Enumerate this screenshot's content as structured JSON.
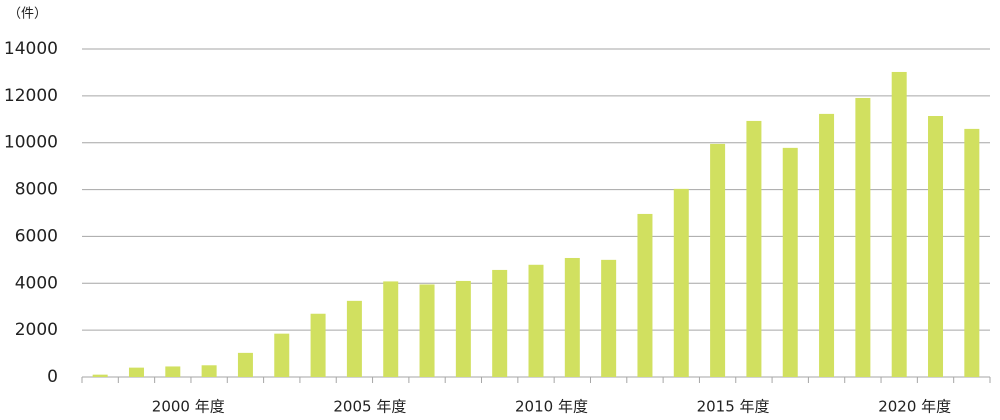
{
  "chart_data": {
    "type": "bar",
    "unit_label": "（件）",
    "categories": [
      null,
      null,
      "2000 年度",
      null,
      null,
      null,
      null,
      "2005 年度",
      null,
      null,
      null,
      null,
      "2010 年度",
      null,
      null,
      null,
      null,
      "2015 年度",
      null,
      null,
      null,
      null,
      "2020 年度",
      null,
      null
    ],
    "values": [
      100,
      400,
      450,
      500,
      1030,
      1850,
      2700,
      3250,
      4080,
      3950,
      4100,
      4570,
      4790,
      5080,
      5000,
      6960,
      8030,
      9950,
      10930,
      9780,
      11230,
      11910,
      13020,
      11140,
      10590
    ],
    "color": "#d1e060",
    "ylim": [
      0,
      14000
    ],
    "yticks": [
      0,
      2000,
      4000,
      6000,
      8000,
      10000,
      12000,
      14000
    ],
    "grid": true
  }
}
